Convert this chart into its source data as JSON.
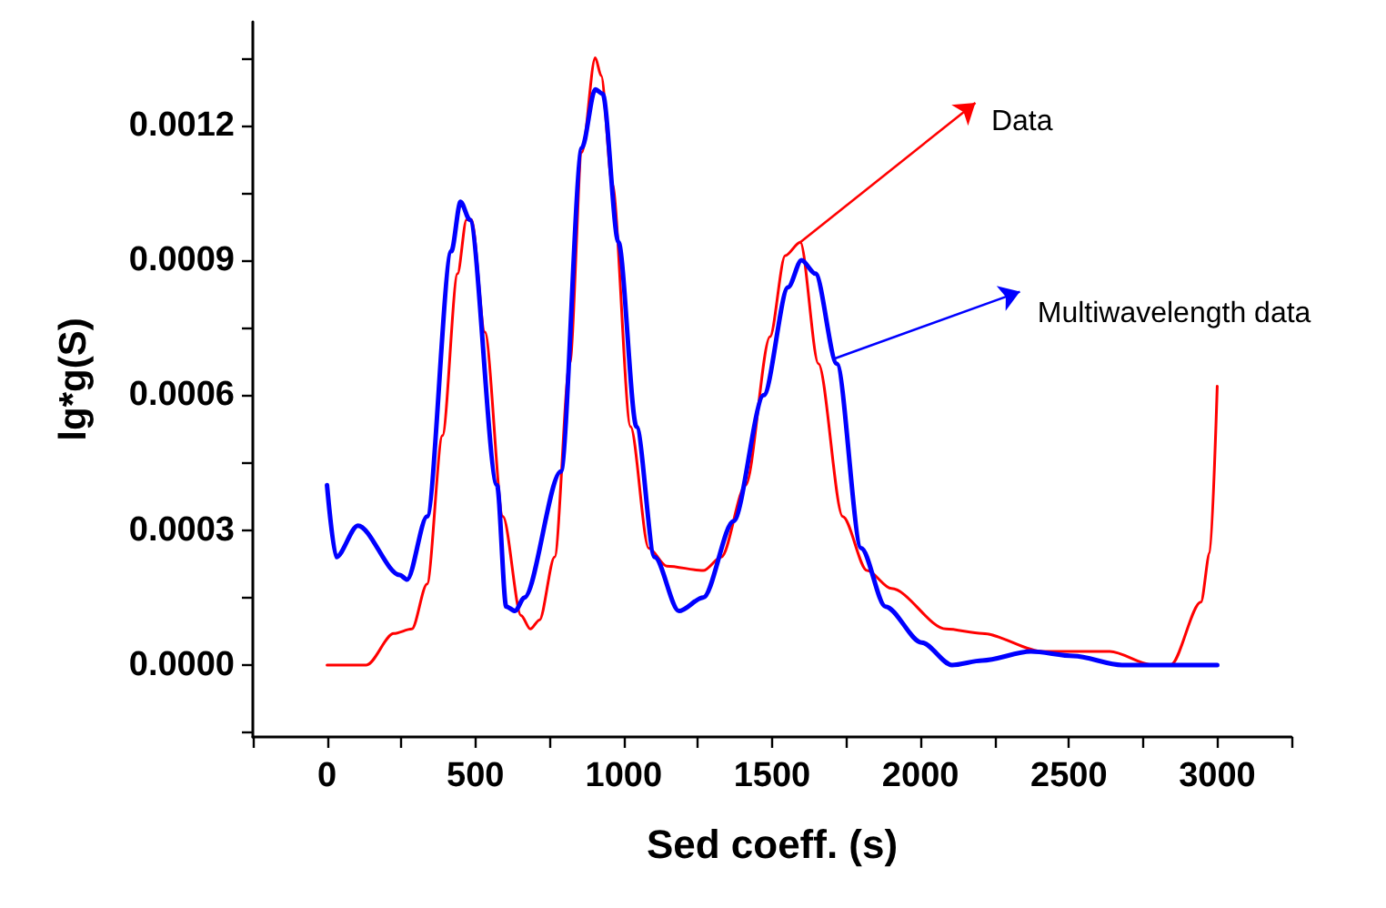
{
  "chart_data": {
    "type": "line",
    "xlabel": "Sed coeff. (s)",
    "ylabel": "lg*g(S)",
    "xlim": [
      -250,
      3250
    ],
    "xticks": [
      {
        "value": -250,
        "label": null
      },
      0,
      {
        "value": 250,
        "label": null
      },
      500,
      {
        "value": 750,
        "label": null
      },
      1000,
      {
        "value": 1250,
        "label": null
      },
      1500,
      {
        "value": 1750,
        "label": null
      },
      2000,
      {
        "value": 2250,
        "label": null
      },
      2500,
      {
        "value": 2750,
        "label": null
      },
      3000,
      {
        "value": 3250,
        "label": null
      }
    ],
    "ylim": [
      -0.00016,
      0.00143
    ],
    "yticks": [
      {
        "value": -0.00015,
        "label": null
      },
      {
        "value": 0,
        "label": "0.0000"
      },
      {
        "value": 0.00015,
        "label": null
      },
      {
        "value": 0.0003,
        "label": "0.0003"
      },
      {
        "value": 0.00045,
        "label": null
      },
      {
        "value": 0.0006,
        "label": "0.0006"
      },
      {
        "value": 0.00075,
        "label": null
      },
      {
        "value": 0.0009,
        "label": "0.0009"
      },
      {
        "value": 0.00105,
        "label": null
      },
      {
        "value": 0.0012,
        "label": "0.0012"
      },
      {
        "value": 0.00135,
        "label": null
      }
    ],
    "grid": false,
    "marker": "none",
    "line_style": "solid",
    "series": [
      {
        "color": "#ff0000",
        "x": [
          0,
          133,
          225,
          286,
          337,
          389,
          440,
          470,
          487,
          532,
          593,
          654,
          685,
          716,
          767,
          818,
          859,
          904,
          924,
          961,
          1023,
          1084,
          1145,
          1268,
          1329,
          1411,
          1493,
          1544,
          1595,
          1656,
          1738,
          1820,
          1902,
          2086,
          2208,
          2413,
          2515,
          2638,
          2781,
          2843,
          2945,
          2975,
          3000
        ],
        "values": [
          0,
          0,
          7e-05,
          8e-05,
          0.00018,
          0.00051,
          0.00087,
          0.00099,
          0.00099,
          0.00074,
          0.00033,
          0.00011,
          8e-05,
          0.0001,
          0.00024,
          0.00067,
          0.00114,
          0.00135,
          0.00131,
          0.00107,
          0.00053,
          0.00026,
          0.00022,
          0.00021,
          0.00024,
          0.0004,
          0.00073,
          0.00091,
          0.00094,
          0.00067,
          0.00033,
          0.00021,
          0.00017,
          8e-05,
          7e-05,
          3e-05,
          3e-05,
          3e-05,
          0,
          0,
          0.00014,
          0.00025,
          0.00062
        ]
      },
      {
        "color": "#0000ff",
        "x": [
          0,
          31,
          104,
          245,
          270,
          337,
          419,
          450,
          481,
          573,
          604,
          634,
          665,
          788,
          859,
          904,
          929,
          982,
          1043,
          1104,
          1186,
          1268,
          1370,
          1472,
          1554,
          1599,
          1646,
          1718,
          1800,
          1882,
          2004,
          2106,
          2208,
          2372,
          2515,
          2679,
          3000
        ],
        "values": [
          0.0004,
          0.00024,
          0.00031,
          0.0002,
          0.00019,
          0.00033,
          0.00092,
          0.00103,
          0.00099,
          0.0004,
          0.00013,
          0.00012,
          0.00015,
          0.00043,
          0.00115,
          0.00128,
          0.00127,
          0.00094,
          0.00053,
          0.00024,
          0.00012,
          0.00015,
          0.00032,
          0.0006,
          0.00084,
          0.0009,
          0.00087,
          0.00067,
          0.00026,
          0.00013,
          5e-05,
          0,
          1e-05,
          3e-05,
          2e-05,
          0,
          0
        ]
      }
    ],
    "annotations": [
      {
        "text": "Data",
        "x": 1595,
        "y": 0.00094
      },
      {
        "text": "Multiwavelength data",
        "x": 1705,
        "y": 0.00068
      }
    ]
  }
}
